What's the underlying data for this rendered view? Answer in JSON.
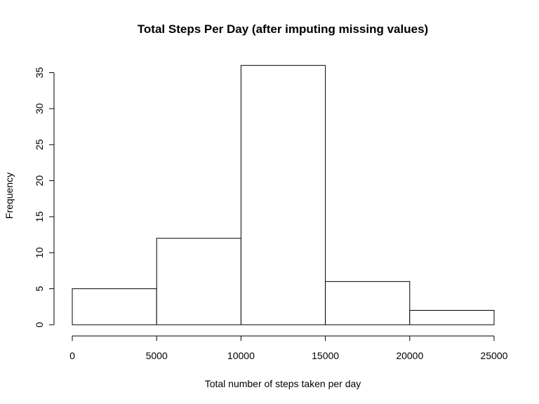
{
  "chart_data": {
    "type": "bar",
    "title": "Total Steps Per Day (after imputing missing values)",
    "xlabel": "Total number of steps taken per day",
    "ylabel": "Frequency",
    "bins": [
      {
        "start": 0,
        "end": 5000,
        "count": 5
      },
      {
        "start": 5000,
        "end": 10000,
        "count": 12
      },
      {
        "start": 10000,
        "end": 15000,
        "count": 36
      },
      {
        "start": 15000,
        "end": 20000,
        "count": 6
      },
      {
        "start": 20000,
        "end": 25000,
        "count": 2
      }
    ],
    "xlim": [
      0,
      25000
    ],
    "ylim": [
      0,
      36
    ],
    "x_ticks": [
      "0",
      "5000",
      "10000",
      "15000",
      "20000",
      "25000"
    ],
    "y_ticks": [
      "0",
      "5",
      "10",
      "15",
      "20",
      "25",
      "30",
      "35"
    ],
    "grid": false,
    "bar_fill": "#ffffff",
    "bar_stroke": "#000000"
  }
}
